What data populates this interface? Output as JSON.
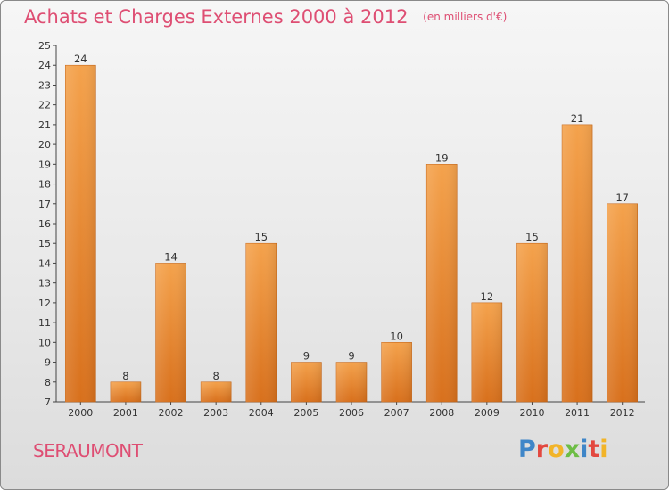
{
  "chart_data": {
    "type": "bar",
    "title": "Achats et Charges Externes 2000 à 2012",
    "unit": "(en milliers d'€)",
    "categories": [
      "2000",
      "2001",
      "2002",
      "2003",
      "2004",
      "2005",
      "2006",
      "2007",
      "2008",
      "2009",
      "2010",
      "2011",
      "2012"
    ],
    "values": [
      24,
      8,
      14,
      8,
      15,
      9,
      9,
      10,
      19,
      12,
      15,
      21,
      17
    ],
    "ylim": [
      7,
      25
    ],
    "yticks": [
      7,
      8,
      9,
      10,
      11,
      12,
      13,
      14,
      15,
      16,
      17,
      18,
      19,
      20,
      21,
      22,
      23,
      24,
      25
    ],
    "grid": false,
    "bar_color": "#f0902c"
  },
  "commune": "SERAUMONT",
  "brand": {
    "letters": [
      "P",
      "r",
      "o",
      "x",
      "i",
      "t",
      "i"
    ],
    "colors": [
      "#3f86c8",
      "#e3483f",
      "#f2b428",
      "#6dbd45",
      "#3f86c8",
      "#e3483f",
      "#f2b428"
    ]
  }
}
